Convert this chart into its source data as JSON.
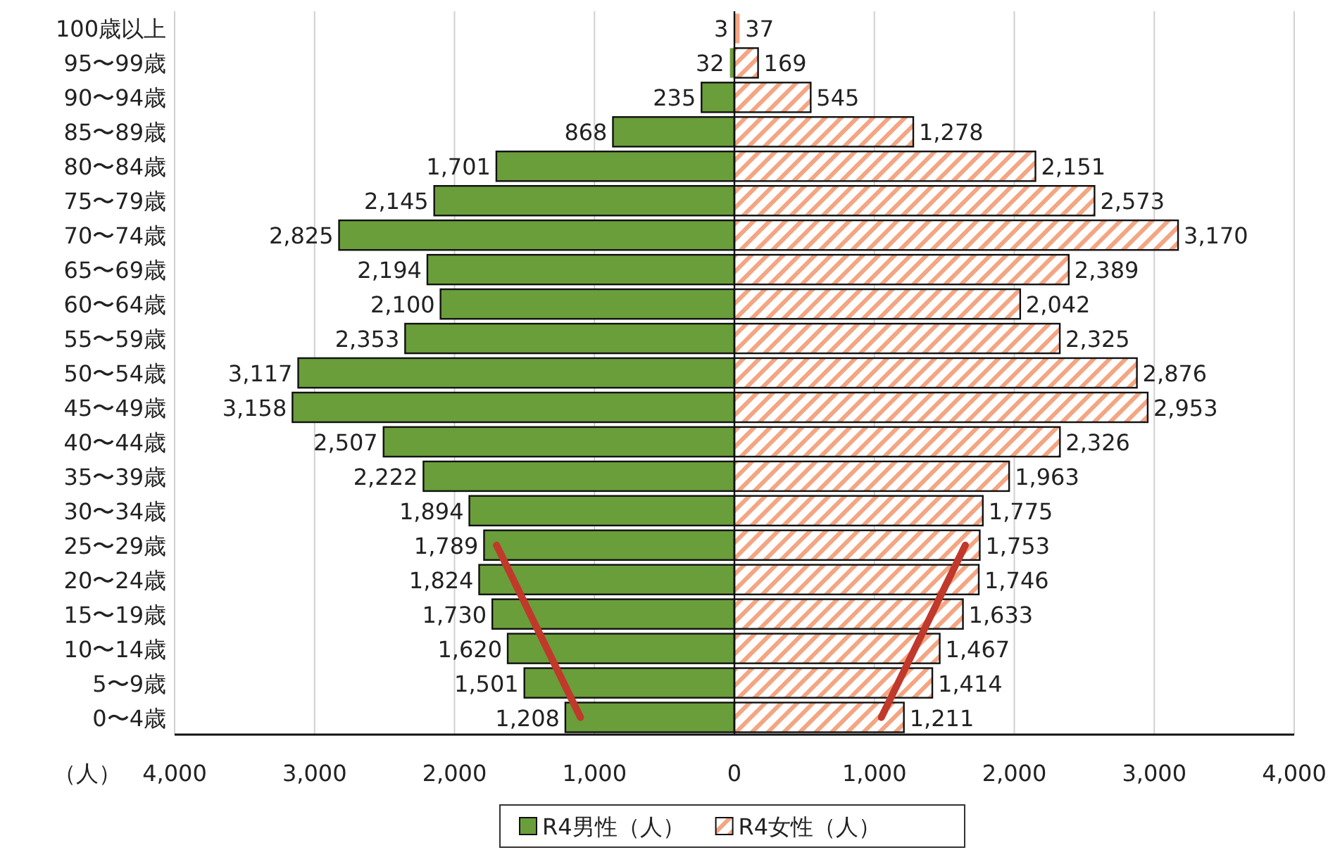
{
  "chart_data": {
    "type": "bar",
    "orientation": "horizontal",
    "xlabel": "（人）",
    "categories": [
      "100歳以上",
      "95〜99歳",
      "90〜94歳",
      "85〜89歳",
      "80〜84歳",
      "75〜79歳",
      "70〜74歳",
      "65〜69歳",
      "60〜64歳",
      "55〜59歳",
      "50〜54歳",
      "45〜49歳",
      "40〜44歳",
      "35〜39歳",
      "30〜34歳",
      "25〜29歳",
      "20〜24歳",
      "15〜19歳",
      "10〜14歳",
      "5〜9歳",
      "0〜4歳"
    ],
    "series": [
      {
        "name": "R4男性（人）",
        "color": "#6a9e3a",
        "values": [
          3,
          32,
          235,
          868,
          1701,
          2145,
          2825,
          2194,
          2100,
          2353,
          3117,
          3158,
          2507,
          2222,
          1894,
          1789,
          1824,
          1730,
          1620,
          1501,
          1208
        ],
        "base": [
          -3,
          -32,
          -235,
          -868,
          -1701,
          -2145,
          -2825,
          -2194,
          -2100,
          -2353,
          -3117,
          -3158,
          -2507,
          -2222,
          -1894,
          -1789,
          -1824,
          -1730,
          -1620,
          -1501,
          -1208
        ],
        "value_labels": [
          "3",
          "32",
          "235",
          "868",
          "1,701",
          "2,145",
          "2,825",
          "2,194",
          "2,100",
          "2,353",
          "3,117",
          "3,158",
          "2,507",
          "2,222",
          "1,894",
          "1,789",
          "1,824",
          "1,730",
          "1,620",
          "1,501",
          "1,208"
        ]
      },
      {
        "name": "R4女性（人）",
        "color": "#f4a582",
        "values": [
          37,
          169,
          545,
          1278,
          2151,
          2573,
          3170,
          2389,
          2042,
          2325,
          2876,
          2953,
          2326,
          1963,
          1775,
          1753,
          1746,
          1633,
          1467,
          1414,
          1211
        ],
        "value_labels": [
          "37",
          "169",
          "545",
          "1,278",
          "2,151",
          "2,573",
          "3,170",
          "2,389",
          "2,042",
          "2,325",
          "2,876",
          "2,953",
          "2,326",
          "1,963",
          "1,775",
          "1,753",
          "1,746",
          "1,633",
          "1,467",
          "1,414",
          "1,211"
        ]
      },
      {
        "type": "line",
        "color": "#c0392b",
        "x": [
          "25〜29歳",
          "0〜4歳"
        ],
        "values": [
          -1700,
          -1100
        ]
      },
      {
        "type": "line",
        "color": "#c0392b",
        "x": [
          "25〜29歳",
          "0〜4歳"
        ],
        "values": [
          1650,
          1050
        ]
      }
    ],
    "xlim": [
      -4000,
      4000
    ],
    "xticks": [
      {
        "value": -4000,
        "label": "4,000"
      },
      {
        "value": -3000,
        "label": "3,000"
      },
      {
        "value": -2000,
        "label": "2,000"
      },
      {
        "value": -1000,
        "label": "1,000"
      },
      0,
      {
        "value": 1000,
        "label": "1,000"
      },
      {
        "value": 2000,
        "label": "2,000"
      },
      {
        "value": 3000,
        "label": "3,000"
      },
      {
        "value": 4000,
        "label": "4,000"
      }
    ],
    "grid": "x",
    "legend": "bottom"
  }
}
